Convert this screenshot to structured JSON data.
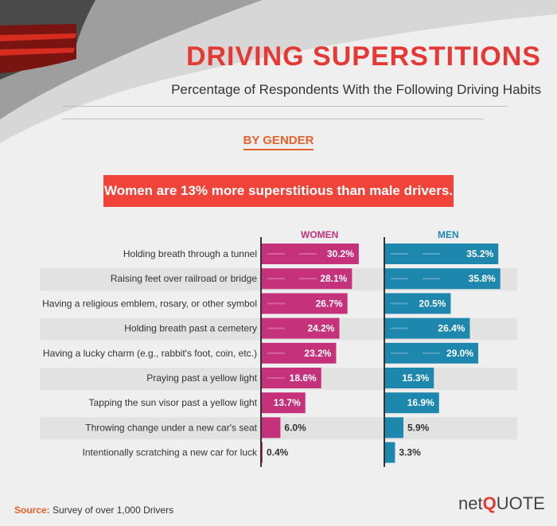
{
  "title": "DRIVING SUPERSTITIONS",
  "subtitle": "Percentage of Respondents With the Following Driving Habits",
  "section_label": "BY GENDER",
  "banner": "Women are 13% more superstitious than male drivers.",
  "source_label": "Source:",
  "source_text": "Survey of over 1,000 Drivers",
  "logo": {
    "prefix": "net",
    "q": "Q",
    "suffix": "UOTE"
  },
  "colors": {
    "women": "#c5317a",
    "men": "#1e87ad",
    "accent": "#e53935"
  },
  "chart_data": {
    "type": "bar",
    "orientation": "horizontal",
    "categories": [
      "Holding breath through a tunnel",
      "Raising feet over railroad or bridge",
      "Having a religious emblem, rosary, or other symbol",
      "Holding breath past a cemetery",
      "Having a lucky charm (e.g., rabbit's foot, coin, etc.)",
      "Praying past a yellow light",
      "Tapping the sun visor past a yellow light",
      "Throwing change under a new car's seat",
      "Intentionally scratching a new car for luck"
    ],
    "series": [
      {
        "name": "WOMEN",
        "values": [
          30.2,
          28.1,
          26.7,
          24.2,
          23.2,
          18.6,
          13.7,
          6.0,
          0.4
        ],
        "labels": [
          "30.2%",
          "28.1%",
          "26.7%",
          "24.2%",
          "23.2%",
          "18.6%",
          "13.7%",
          "6.0%",
          "0.4%"
        ]
      },
      {
        "name": "MEN",
        "values": [
          35.2,
          35.8,
          20.5,
          26.4,
          29.0,
          15.3,
          16.9,
          5.9,
          3.3
        ],
        "labels": [
          "35.2%",
          "35.8%",
          "20.5%",
          "26.4%",
          "29.0%",
          "15.3%",
          "16.9%",
          "5.9%",
          "3.3%"
        ]
      }
    ]
  }
}
